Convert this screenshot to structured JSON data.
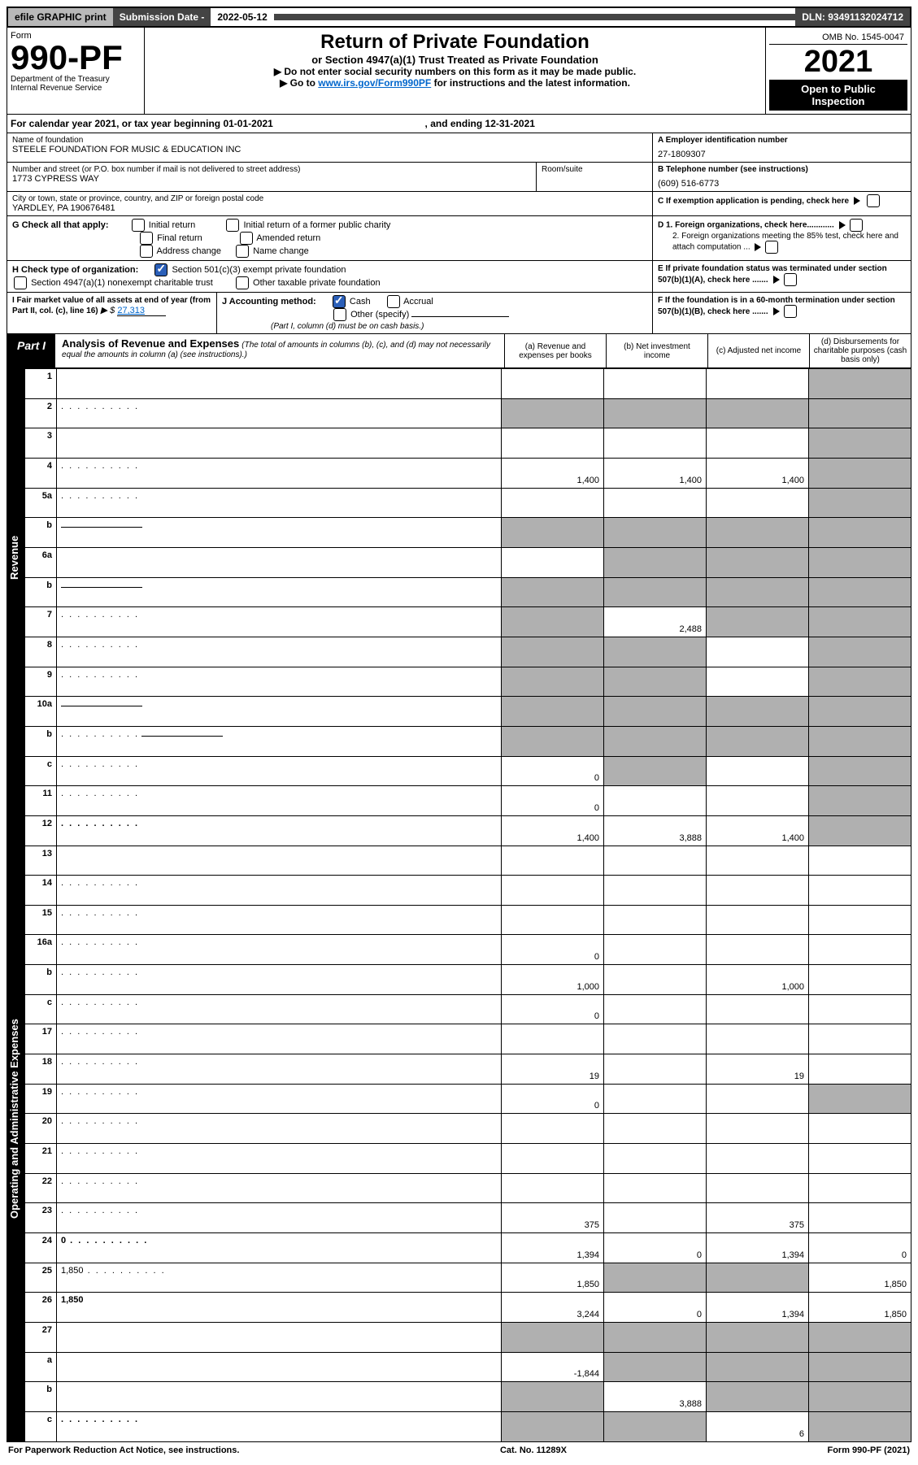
{
  "topbar": {
    "efile": "efile GRAPHIC print",
    "sub_label": "Submission Date -",
    "sub_date": "2022-05-12",
    "dln_label": "DLN:",
    "dln": "93491132024712"
  },
  "header": {
    "form_word": "Form",
    "form_no": "990-PF",
    "dept1": "Department of the Treasury",
    "dept2": "Internal Revenue Service",
    "title": "Return of Private Foundation",
    "subtitle": "or Section 4947(a)(1) Trust Treated as Private Foundation",
    "instr1": "▶ Do not enter social security numbers on this form as it may be made public.",
    "instr2_pre": "▶ Go to ",
    "instr2_link": "www.irs.gov/Form990PF",
    "instr2_post": " for instructions and the latest information.",
    "omb": "OMB No. 1545-0047",
    "year": "2021",
    "open1": "Open to Public",
    "open2": "Inspection"
  },
  "cal": {
    "text_pre": "For calendar year 2021, or tax year beginning ",
    "begin": "01-01-2021",
    "mid": " , and ending ",
    "end": "12-31-2021"
  },
  "info": {
    "name_label": "Name of foundation",
    "name": "STEELE FOUNDATION FOR MUSIC & EDUCATION INC",
    "addr_label": "Number and street (or P.O. box number if mail is not delivered to street address)",
    "addr": "1773 CYPRESS WAY",
    "room_label": "Room/suite",
    "city_label": "City or town, state or province, country, and ZIP or foreign postal code",
    "city": "YARDLEY, PA  190676481",
    "a_label": "A Employer identification number",
    "a_val": "27-1809307",
    "b_label": "B Telephone number (see instructions)",
    "b_val": "(609) 516-6773",
    "c_label": "C  If exemption application is pending, check here",
    "d1_label": "D 1. Foreign organizations, check here............",
    "d2_label": "2. Foreign organizations meeting the 85% test, check here and attach computation ...",
    "e_label": "E  If private foundation status was terminated under section 507(b)(1)(A), check here .......",
    "f_label": "F  If the foundation is in a 60-month termination under section 507(b)(1)(B), check here .......",
    "g_label": "G Check all that apply:",
    "g_opts": [
      "Initial return",
      "Final return",
      "Address change",
      "Initial return of a former public charity",
      "Amended return",
      "Name change"
    ],
    "h_label": "H Check type of organization:",
    "h_opt1": "Section 501(c)(3) exempt private foundation",
    "h_opt2": "Section 4947(a)(1) nonexempt charitable trust",
    "h_opt3": "Other taxable private foundation",
    "i_label": "I Fair market value of all assets at end of year (from Part II, col. (c), line 16)",
    "i_prefix": "▶ $",
    "i_val": "27,313",
    "j_label": "J Accounting method:",
    "j_cash": "Cash",
    "j_accr": "Accrual",
    "j_other": "Other (specify)",
    "j_note": "(Part I, column (d) must be on cash basis.)"
  },
  "part": {
    "badge": "Part I",
    "title": "Analysis of Revenue and Expenses",
    "note": "(The total of amounts in columns (b), (c), and (d) may not necessarily equal the amounts in column (a) (see instructions).)",
    "col_a": "(a)   Revenue and expenses per books",
    "col_b": "(b)   Net investment income",
    "col_c": "(c)   Adjusted net income",
    "col_d": "(d)   Disbursements for charitable purposes (cash basis only)"
  },
  "side": {
    "rev": "Revenue",
    "exp": "Operating and Administrative Expenses"
  },
  "rows": [
    {
      "n": "1",
      "d": "",
      "a": "",
      "b": "",
      "c": "",
      "shade": [
        "d"
      ]
    },
    {
      "n": "2",
      "d": "",
      "dots": true,
      "a": "",
      "b": "",
      "c": "",
      "shade": [
        "a",
        "b",
        "c",
        "d"
      ],
      "bold_not": true
    },
    {
      "n": "3",
      "d": "",
      "a": "",
      "b": "",
      "c": "",
      "shade": [
        "d"
      ]
    },
    {
      "n": "4",
      "d": "",
      "dots": true,
      "a": "1,400",
      "b": "1,400",
      "c": "1,400",
      "shade": [
        "d"
      ]
    },
    {
      "n": "5a",
      "d": "",
      "dots": true,
      "a": "",
      "b": "",
      "c": "",
      "shade": [
        "d"
      ]
    },
    {
      "n": "b",
      "d": "",
      "underline": true,
      "a": "",
      "b": "",
      "c": "",
      "shade": [
        "a",
        "b",
        "c",
        "d"
      ]
    },
    {
      "n": "6a",
      "d": "",
      "a": "",
      "b": "",
      "c": "",
      "shade": [
        "b",
        "c",
        "d"
      ]
    },
    {
      "n": "b",
      "d": "",
      "underline": true,
      "a": "",
      "b": "",
      "c": "",
      "shade": [
        "a",
        "b",
        "c",
        "d"
      ]
    },
    {
      "n": "7",
      "d": "",
      "dots": true,
      "a": "",
      "b": "2,488",
      "c": "",
      "shade": [
        "a",
        "c",
        "d"
      ]
    },
    {
      "n": "8",
      "d": "",
      "dots": true,
      "a": "",
      "b": "",
      "c": "",
      "shade": [
        "a",
        "b",
        "d"
      ]
    },
    {
      "n": "9",
      "d": "",
      "dots": true,
      "a": "",
      "b": "",
      "c": "",
      "shade": [
        "a",
        "b",
        "d"
      ]
    },
    {
      "n": "10a",
      "d": "",
      "underline": true,
      "a": "",
      "b": "",
      "c": "",
      "shade": [
        "a",
        "b",
        "c",
        "d"
      ]
    },
    {
      "n": "b",
      "d": "",
      "dots": true,
      "underline": true,
      "a": "",
      "b": "",
      "c": "",
      "shade": [
        "a",
        "b",
        "c",
        "d"
      ]
    },
    {
      "n": "c",
      "d": "",
      "dots": true,
      "a": "0",
      "b": "",
      "c": "",
      "shade": [
        "b",
        "d"
      ]
    },
    {
      "n": "11",
      "d": "",
      "dots": true,
      "a": "0",
      "b": "",
      "c": "",
      "shade": [
        "d"
      ]
    },
    {
      "n": "12",
      "d": "",
      "dots": true,
      "bold": true,
      "a": "1,400",
      "b": "3,888",
      "c": "1,400",
      "shade": [
        "d"
      ]
    },
    {
      "n": "13",
      "d": "",
      "a": "",
      "b": "",
      "c": ""
    },
    {
      "n": "14",
      "d": "",
      "dots": true,
      "a": "",
      "b": "",
      "c": ""
    },
    {
      "n": "15",
      "d": "",
      "dots": true,
      "a": "",
      "b": "",
      "c": ""
    },
    {
      "n": "16a",
      "d": "",
      "dots": true,
      "a": "0",
      "b": "",
      "c": ""
    },
    {
      "n": "b",
      "d": "",
      "dots": true,
      "a": "1,000",
      "b": "",
      "c": "1,000"
    },
    {
      "n": "c",
      "d": "",
      "dots": true,
      "a": "0",
      "b": "",
      "c": ""
    },
    {
      "n": "17",
      "d": "",
      "dots": true,
      "a": "",
      "b": "",
      "c": ""
    },
    {
      "n": "18",
      "d": "",
      "dots": true,
      "a": "19",
      "b": "",
      "c": "19"
    },
    {
      "n": "19",
      "d": "",
      "dots": true,
      "a": "0",
      "b": "",
      "c": "",
      "shade": [
        "d"
      ]
    },
    {
      "n": "20",
      "d": "",
      "dots": true,
      "a": "",
      "b": "",
      "c": ""
    },
    {
      "n": "21",
      "d": "",
      "dots": true,
      "a": "",
      "b": "",
      "c": ""
    },
    {
      "n": "22",
      "d": "",
      "dots": true,
      "a": "",
      "b": "",
      "c": ""
    },
    {
      "n": "23",
      "d": "",
      "dots": true,
      "a": "375",
      "b": "",
      "c": "375"
    },
    {
      "n": "24",
      "d": "0",
      "dots": true,
      "bold": true,
      "a": "1,394",
      "b": "0",
      "c": "1,394"
    },
    {
      "n": "25",
      "d": "1,850",
      "dots": true,
      "a": "1,850",
      "b": "",
      "c": "",
      "shade": [
        "b",
        "c"
      ]
    },
    {
      "n": "26",
      "d": "1,850",
      "bold": true,
      "a": "3,244",
      "b": "0",
      "c": "1,394"
    },
    {
      "n": "27",
      "d": "",
      "a": "",
      "b": "",
      "c": "",
      "shade": [
        "a",
        "b",
        "c",
        "d"
      ]
    },
    {
      "n": "a",
      "d": "",
      "bold": true,
      "a": "-1,844",
      "b": "",
      "c": "",
      "shade": [
        "b",
        "c",
        "d"
      ]
    },
    {
      "n": "b",
      "d": "",
      "bold": true,
      "a": "",
      "b": "3,888",
      "c": "",
      "shade": [
        "a",
        "c",
        "d"
      ]
    },
    {
      "n": "c",
      "d": "",
      "dots": true,
      "bold": true,
      "a": "",
      "b": "",
      "c": "6",
      "shade": [
        "a",
        "b",
        "d"
      ]
    }
  ],
  "footer": {
    "left": "For Paperwork Reduction Act Notice, see instructions.",
    "mid": "Cat. No. 11289X",
    "right": "Form 990-PF (2021)"
  }
}
